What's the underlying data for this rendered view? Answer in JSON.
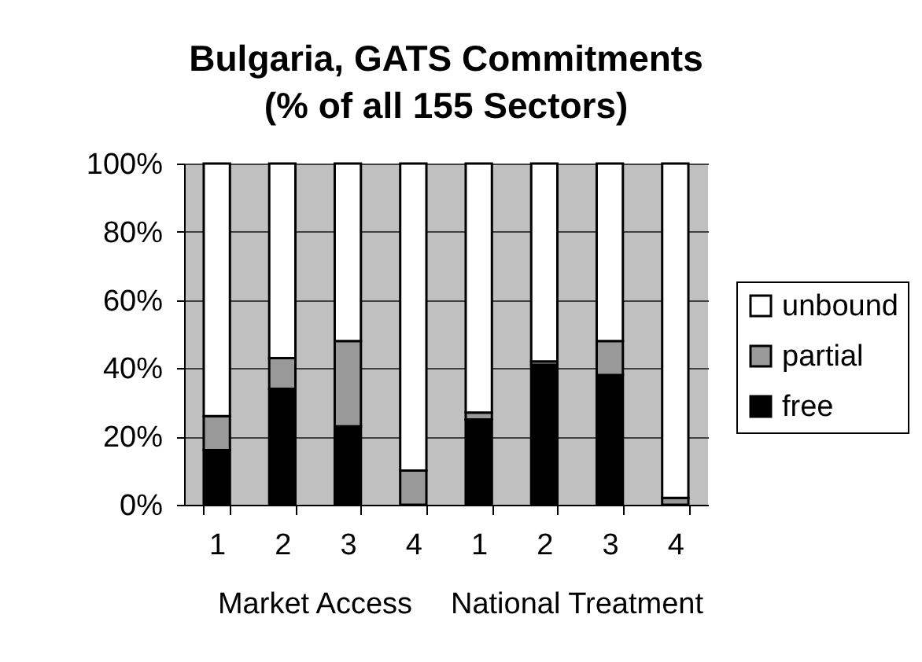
{
  "chart_data": {
    "type": "bar",
    "title": "Bulgaria, GATS Commitments\n(% of all 155 Sectors)",
    "categories": [
      "1",
      "2",
      "3",
      "4",
      "1",
      "2",
      "3",
      "4"
    ],
    "stacked": true,
    "series": [
      {
        "name": "free",
        "color": "#000000",
        "values": [
          16,
          34,
          23,
          0,
          25,
          41,
          38,
          0
        ]
      },
      {
        "name": "partial",
        "color": "#999999",
        "values": [
          10,
          9,
          25,
          10,
          2,
          1,
          10,
          2
        ]
      },
      {
        "name": "unbound",
        "color": "#ffffff",
        "values": [
          74,
          57,
          52,
          90,
          73,
          58,
          52,
          98
        ]
      }
    ],
    "ylim": [
      0,
      100
    ],
    "yticks": [
      {
        "value": 0,
        "label": "0%"
      },
      {
        "value": 20,
        "label": "20%"
      },
      {
        "value": 40,
        "label": "40%"
      },
      {
        "value": 60,
        "label": "60%"
      },
      {
        "value": 80,
        "label": "80%"
      },
      {
        "value": 100,
        "label": "100%"
      }
    ],
    "grid": "y",
    "legend": "right",
    "annotations": [
      "Market Access",
      "National Treatment"
    ]
  }
}
